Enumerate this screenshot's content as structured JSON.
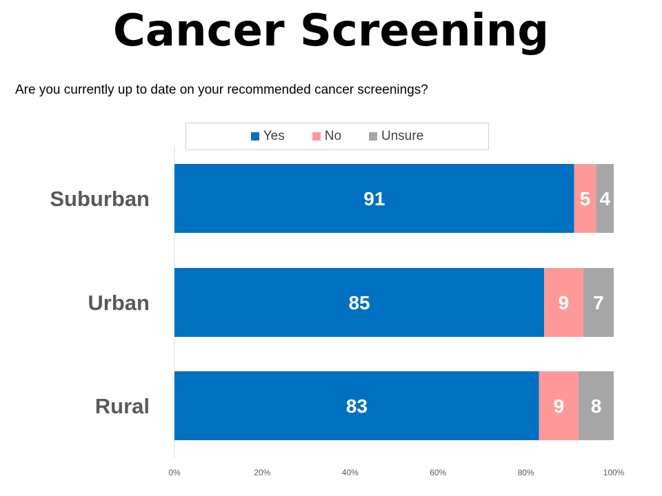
{
  "chart_data": {
    "type": "bar",
    "orientation": "horizontal",
    "stacked": true,
    "title": "Cancer Screening",
    "subtitle": "Are you currently up to date on your recommended cancer screenings?",
    "categories": [
      "Suburban",
      "Urban",
      "Rural"
    ],
    "series": [
      {
        "name": "Yes",
        "color": "#0070C0",
        "values": [
          91,
          85,
          83
        ]
      },
      {
        "name": "No",
        "color": "#FF9999",
        "values": [
          5,
          9,
          9
        ]
      },
      {
        "name": "Unsure",
        "color": "#A6A6A6",
        "values": [
          4,
          7,
          8
        ]
      }
    ],
    "xlim": [
      0,
      100
    ],
    "x_ticks": [
      "0%",
      "20%",
      "40%",
      "60%",
      "80%",
      "100%"
    ],
    "legend_position": "top",
    "grid": false
  }
}
